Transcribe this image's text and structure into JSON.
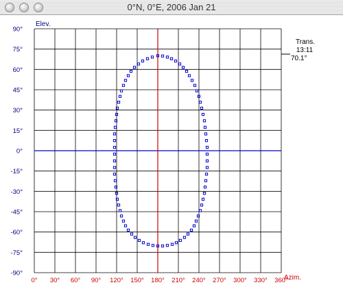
{
  "window": {
    "title": "0°N, 0°E, 2006 Jan 21"
  },
  "colors": {
    "grid": "#000000",
    "axis_labels": "#cc0000",
    "elevation_labels": "#000080",
    "sun_path": "#0000cc",
    "meridian": "#cc0000",
    "horizon": "#0000cc"
  },
  "icons": [
    "close-icon",
    "minimize-icon",
    "zoom-icon"
  ],
  "transit": {
    "label": "Trans.",
    "time": "13:11",
    "elevation": "70.1°"
  },
  "chart_data": {
    "type": "scatter",
    "xlabel": "Azim.",
    "ylabel": "Elev.",
    "xlim": [
      0,
      360
    ],
    "ylim": [
      -90,
      90
    ],
    "grid": true,
    "x_ticks": [
      "0°",
      "30°",
      "60°",
      "90°",
      "120°",
      "150°",
      "180°",
      "210°",
      "240°",
      "270°",
      "300°",
      "330°",
      "360°"
    ],
    "y_ticks": [
      "90°",
      "75°",
      "60°",
      "45°",
      "30°",
      "15°",
      "0°",
      "-15°",
      "-30°",
      "-45°",
      "-60°",
      "-75°",
      "-90°"
    ],
    "meridian_azimuth": 180,
    "horizon_elevation": 0,
    "series": [
      {
        "values": [
          [
            180,
            70.1
          ],
          [
            187,
            69.9
          ],
          [
            194,
            69.1
          ],
          [
            200,
            67.9
          ],
          [
            206,
            66.2
          ],
          [
            212,
            64.0
          ],
          [
            217,
            61.5
          ],
          [
            222,
            58.6
          ],
          [
            226,
            55.4
          ],
          [
            230,
            51.9
          ],
          [
            234,
            48.2
          ],
          [
            237,
            44.2
          ],
          [
            240,
            40.1
          ],
          [
            242,
            35.8
          ],
          [
            244,
            31.4
          ],
          [
            246,
            26.8
          ],
          [
            248,
            22.1
          ],
          [
            249,
            17.3
          ],
          [
            250,
            12.4
          ],
          [
            251,
            7.5
          ],
          [
            252,
            2.5
          ],
          [
            252,
            -2.5
          ],
          [
            252,
            -7.5
          ],
          [
            252,
            -12.4
          ],
          [
            251,
            -17.3
          ],
          [
            250,
            -22.1
          ],
          [
            249,
            -26.8
          ],
          [
            248,
            -31.4
          ],
          [
            246,
            -35.8
          ],
          [
            244,
            -40.1
          ],
          [
            242,
            -44.2
          ],
          [
            239,
            -48.2
          ],
          [
            236,
            -51.9
          ],
          [
            233,
            -55.4
          ],
          [
            229,
            -58.6
          ],
          [
            224,
            -61.5
          ],
          [
            219,
            -64.0
          ],
          [
            213,
            -66.2
          ],
          [
            207,
            -67.9
          ],
          [
            201,
            -69.1
          ],
          [
            194,
            -69.9
          ],
          [
            187,
            -70.3
          ],
          [
            180,
            -70.3
          ],
          [
            173,
            -69.9
          ],
          [
            166,
            -69.1
          ],
          [
            159,
            -67.9
          ],
          [
            153,
            -66.2
          ],
          [
            147,
            -64.0
          ],
          [
            142,
            -61.5
          ],
          [
            137,
            -58.6
          ],
          [
            133,
            -55.4
          ],
          [
            130,
            -51.9
          ],
          [
            127,
            -48.2
          ],
          [
            125,
            -44.2
          ],
          [
            123,
            -40.1
          ],
          [
            121,
            -35.8
          ],
          [
            120,
            -31.4
          ],
          [
            119,
            -26.8
          ],
          [
            118,
            -22.1
          ],
          [
            117,
            -17.3
          ],
          [
            117,
            -12.4
          ],
          [
            117,
            -7.5
          ],
          [
            117,
            -2.5
          ],
          [
            117,
            2.5
          ],
          [
            117,
            7.5
          ],
          [
            117,
            12.4
          ],
          [
            118,
            17.3
          ],
          [
            119,
            22.1
          ],
          [
            120,
            26.8
          ],
          [
            121,
            31.4
          ],
          [
            123,
            35.8
          ],
          [
            125,
            40.1
          ],
          [
            127,
            44.2
          ],
          [
            130,
            48.2
          ],
          [
            133,
            51.9
          ],
          [
            137,
            55.4
          ],
          [
            141,
            58.6
          ],
          [
            146,
            61.5
          ],
          [
            152,
            64.0
          ],
          [
            158,
            66.2
          ],
          [
            165,
            67.9
          ],
          [
            172,
            69.1
          ]
        ]
      }
    ]
  }
}
